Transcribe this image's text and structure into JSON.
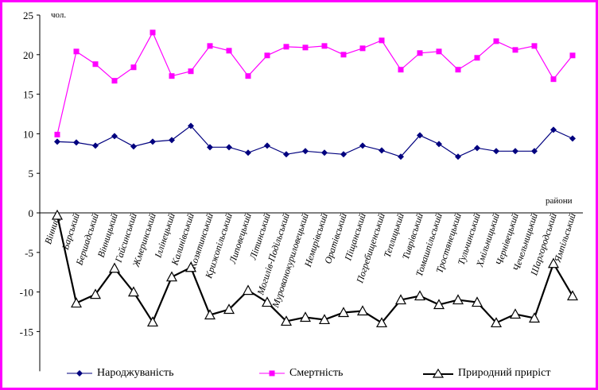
{
  "chart_data": {
    "type": "line",
    "ylabel": "чол.",
    "xlabel": "райони",
    "ylim": [
      -15,
      25
    ],
    "yticks": [
      25,
      20,
      15,
      10,
      5,
      0,
      -5,
      -10,
      -15
    ],
    "categories": [
      "Вінниця",
      "Барський",
      "Бершадський",
      "Вінницький",
      "Гайсинський",
      "Жмеринський",
      "Іллінецький",
      "Калинівський",
      "Козятинський",
      "Крижопільський",
      "Липовецький",
      "Літинський",
      "Могилів-Подільський",
      "Мурованокуриловецький",
      "Немирівський",
      "Оратівський",
      "Піщанський",
      "Погребищенський",
      "Теплицький",
      "Тиврівський",
      "Томашпільський",
      "Тростянецький",
      "Тульчинський",
      "Хмільницький",
      "Чернівецький",
      "Чечельницький",
      "Шаргородський",
      "Ямпільський"
    ],
    "series": [
      {
        "name": "Народжуваність",
        "color": "#00007f",
        "marker": "diamond",
        "values": [
          9.0,
          8.9,
          8.5,
          9.7,
          8.4,
          9.0,
          9.2,
          11.0,
          8.3,
          8.3,
          7.6,
          8.5,
          7.4,
          7.8,
          7.6,
          7.4,
          8.5,
          7.9,
          7.1,
          9.8,
          8.7,
          7.1,
          8.2,
          7.8,
          7.8,
          7.8,
          10.5,
          9.4
        ]
      },
      {
        "name": "Смертність",
        "color": "#ff00ff",
        "marker": "square",
        "values": [
          9.9,
          20.4,
          18.8,
          16.7,
          18.4,
          22.8,
          17.3,
          17.9,
          21.1,
          20.5,
          17.3,
          19.9,
          21.0,
          20.9,
          21.1,
          20.0,
          20.8,
          21.8,
          18.1,
          20.2,
          20.4,
          18.1,
          19.6,
          21.7,
          20.6,
          21.1,
          16.9,
          19.9
        ]
      },
      {
        "name": "Природний приріст",
        "color": "#000000",
        "marker": "triangle",
        "values": [
          -0.3,
          -11.4,
          -10.3,
          -7.0,
          -10.0,
          -13.8,
          -8.1,
          -6.9,
          -12.9,
          -12.2,
          -9.8,
          -11.3,
          -13.7,
          -13.2,
          -13.5,
          -12.6,
          -12.4,
          -13.9,
          -11.0,
          -10.5,
          -11.6,
          -11.0,
          -11.3,
          -13.9,
          -12.8,
          -13.3,
          -6.4,
          -10.5
        ]
      }
    ],
    "grid": false,
    "legend": "bottom"
  }
}
